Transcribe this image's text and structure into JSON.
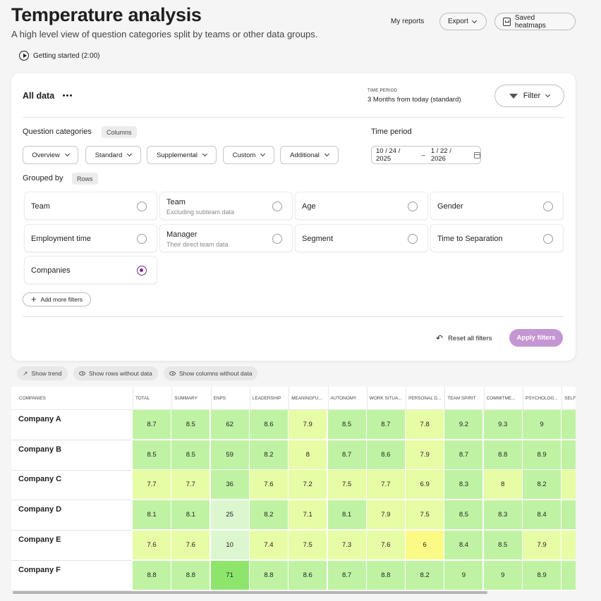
{
  "header": {
    "title": "Temperature analysis",
    "subtitle": "A high level view of question categories split by teams or other data groups.",
    "getting_started": "Getting started (2:00)",
    "my_reports": "My reports",
    "export": "Export",
    "saved_heatmaps": "Saved heatmaps"
  },
  "filters": {
    "title": "All data",
    "time_period_caption": "TIME PERIOD",
    "time_period_value": "3 Months from today (standard)",
    "filter_button": "Filter",
    "question_categories_label": "Question categories",
    "columns_tag": "Columns",
    "category_dropdowns": [
      "Overview",
      "Standard",
      "Supplemental",
      "Custom",
      "Additional"
    ],
    "time_period_label": "Time period",
    "date_start": "10 / 24 / 2025",
    "date_sep": "–",
    "date_end": "1 / 22 / 2026",
    "grouped_by_label": "Grouped by",
    "rows_tag": "Rows",
    "options": [
      {
        "label": "Team",
        "sub": "",
        "selected": false
      },
      {
        "label": "Team",
        "sub": "Excluding subteam data",
        "selected": false
      },
      {
        "label": "Age",
        "sub": "",
        "selected": false
      },
      {
        "label": "Gender",
        "sub": "",
        "selected": false
      },
      {
        "label": "Employment time",
        "sub": "",
        "selected": false
      },
      {
        "label": "Manager",
        "sub": "Their direct team data",
        "selected": false
      },
      {
        "label": "Segment",
        "sub": "",
        "selected": false
      },
      {
        "label": "Time to Separation",
        "sub": "",
        "selected": false
      },
      {
        "label": "Companies",
        "sub": "",
        "selected": true
      }
    ],
    "add_more_filters": "Add more filters",
    "reset_all": "Reset all filters",
    "apply": "Apply filters"
  },
  "toggles": {
    "show_trend": "Show trend",
    "show_rows": "Show rows without data",
    "show_columns": "Show columns without data"
  },
  "table": {
    "first_header": "COMPANIES",
    "columns": [
      "TOTAL",
      "SUMMARY",
      "ENPS",
      "LEADERSHIP",
      "MEANINGFU...",
      "AUTONOMY",
      "WORK SITUA...",
      "PERSONAL D...",
      "TEAM SPIRIT",
      "COMMITME...",
      "PSYCHOLOG...",
      "SELF-..."
    ],
    "rows": [
      {
        "name": "Company A",
        "values": [
          "8.7",
          "8.5",
          "62",
          "8.6",
          "7.9",
          "8.5",
          "8.7",
          "7.8",
          "9.2",
          "9.3",
          "9",
          ""
        ],
        "colors": [
          "#bff3a3",
          "#bff3a3",
          "#bff3a3",
          "#bff3a3",
          "#e6fca5",
          "#bff3a3",
          "#bff3a3",
          "#e6fca5",
          "#bff3a3",
          "#bff3a3",
          "#bff3a3",
          "#bff3a3"
        ]
      },
      {
        "name": "Company B",
        "values": [
          "8.5",
          "8.5",
          "59",
          "8.2",
          "8",
          "8.7",
          "8.6",
          "7.9",
          "8.7",
          "8.8",
          "8.9",
          ""
        ],
        "colors": [
          "#bff3a3",
          "#bff3a3",
          "#bff3a3",
          "#bff3a3",
          "#e6fca5",
          "#bff3a3",
          "#bff3a3",
          "#e6fca5",
          "#bff3a3",
          "#bff3a3",
          "#bff3a3",
          "#bff3a3"
        ]
      },
      {
        "name": "Company C",
        "values": [
          "7.7",
          "7.7",
          "36",
          "7.6",
          "7.2",
          "7.5",
          "7.7",
          "6.9",
          "8.3",
          "8",
          "8.2",
          ""
        ],
        "colors": [
          "#e6fca5",
          "#e6fca5",
          "#bff3a3",
          "#e6fca5",
          "#e6fca5",
          "#e6fca5",
          "#e6fca5",
          "#e6fca5",
          "#bff3a3",
          "#e6fca5",
          "#bff3a3",
          "#e6fca5"
        ]
      },
      {
        "name": "Company D",
        "values": [
          "8.1",
          "8.1",
          "25",
          "8.2",
          "7.1",
          "8.1",
          "7.9",
          "7.5",
          "8.5",
          "8.3",
          "8.4",
          ""
        ],
        "colors": [
          "#bff3a3",
          "#bff3a3",
          "#dcf7d0",
          "#bff3a3",
          "#e6fca5",
          "#bff3a3",
          "#e6fca5",
          "#e6fca5",
          "#bff3a3",
          "#bff3a3",
          "#bff3a3",
          "#bff3a3"
        ]
      },
      {
        "name": "Company E",
        "values": [
          "7.6",
          "7.6",
          "10",
          "7.4",
          "7.5",
          "7.3",
          "7.6",
          "6",
          "8.4",
          "8.5",
          "7.9",
          ""
        ],
        "colors": [
          "#e6fca5",
          "#e6fca5",
          "#dcf7d0",
          "#e6fca5",
          "#e6fca5",
          "#e6fca5",
          "#e6fca5",
          "#fbfa86",
          "#bff3a3",
          "#bff3a3",
          "#e6fca5",
          "#e6fca5"
        ]
      },
      {
        "name": "Company F",
        "values": [
          "8.8",
          "8.8",
          "71",
          "8.8",
          "8.6",
          "8.7",
          "8.8",
          "8.2",
          "9",
          "9",
          "8.9",
          ""
        ],
        "colors": [
          "#bff3a3",
          "#bff3a3",
          "#8ee56c",
          "#bff3a3",
          "#bff3a3",
          "#bff3a3",
          "#bff3a3",
          "#bff3a3",
          "#bff3a3",
          "#bff3a3",
          "#bff3a3",
          "#bff3a3"
        ]
      }
    ]
  }
}
